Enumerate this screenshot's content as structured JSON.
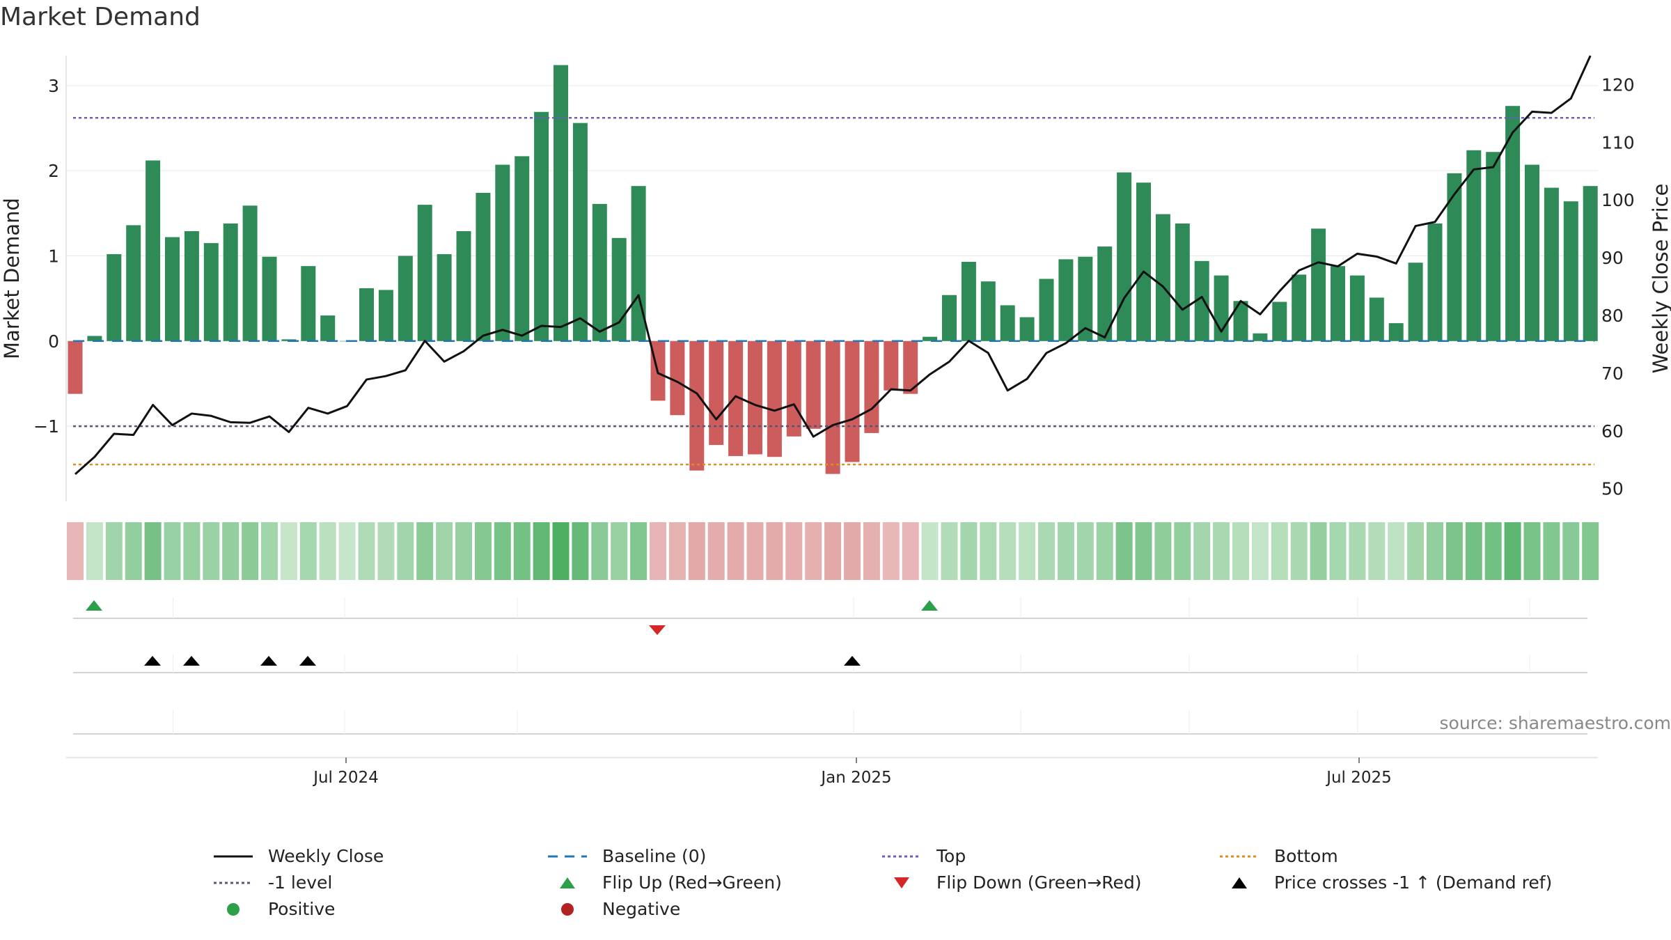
{
  "title": "Market Demand",
  "source": "source: sharemaestro.com",
  "colors": {
    "positive": "#2e8b57",
    "negative": "#cd5c5c",
    "price": "#111111",
    "baseline": "#1f77b4",
    "top": "#6a5acd",
    "bottom": "#e08c1a",
    "minus1": "#555577",
    "flip_up": "#2ca048",
    "flip_down": "#d62728",
    "cross": "#000000",
    "grid": "#e9e9e9"
  },
  "legend": [
    {
      "label": "Weekly Close",
      "style": "solid-line"
    },
    {
      "label": "Baseline (0)",
      "style": "dashed-line"
    },
    {
      "label": "Top",
      "style": "dotted-line-top"
    },
    {
      "label": "Bottom",
      "style": "dotted-line-bottom"
    },
    {
      "label": "-1 level",
      "style": "dotted-line-minus1"
    },
    {
      "label": "Flip Up (Red→Green)",
      "style": "triangle-up-green"
    },
    {
      "label": "Flip Down (Green→Red)",
      "style": "triangle-down-red"
    },
    {
      "label": "Price crosses -1 ↑ (Demand ref)",
      "style": "triangle-up-black"
    },
    {
      "label": "Positive",
      "style": "circle-green"
    },
    {
      "label": "Negative",
      "style": "circle-red"
    }
  ],
  "chart_data": {
    "type": "bar",
    "ylabel": "Market Demand",
    "y2label": "Weekly Close Price",
    "ylim": [
      -1.8,
      3.35
    ],
    "y2lim": [
      49,
      125
    ],
    "yticks": [
      -1,
      0,
      1,
      2,
      3
    ],
    "ytick_labels": [
      "−1",
      "0",
      "1",
      "2",
      "3"
    ],
    "y2ticks": [
      50,
      60,
      70,
      80,
      90,
      100,
      110,
      120
    ],
    "xticks": [
      {
        "index": 14.5,
        "label": "Jul 2024"
      },
      {
        "index": 41,
        "label": "Jan 2025"
      },
      {
        "index": 67,
        "label": "Jul 2025"
      }
    ],
    "levels": {
      "baseline": 0,
      "top": 2.62,
      "bottom": -1.45,
      "minus1": -1
    },
    "demand": [
      -0.62,
      0.06,
      1.02,
      1.36,
      2.12,
      1.22,
      1.29,
      1.15,
      1.38,
      1.59,
      0.99,
      0.02,
      0.88,
      0.3,
      0.0,
      0.62,
      0.6,
      1.0,
      1.6,
      1.02,
      1.29,
      1.74,
      2.07,
      2.17,
      2.69,
      3.24,
      2.56,
      1.61,
      1.21,
      1.82,
      -0.7,
      -0.87,
      -1.52,
      -1.22,
      -1.35,
      -1.33,
      -1.36,
      -1.12,
      -1.03,
      -1.56,
      -1.42,
      -1.08,
      -0.58,
      -0.62,
      0.05,
      0.54,
      0.93,
      0.7,
      0.42,
      0.28,
      0.73,
      0.96,
      0.99,
      1.11,
      1.98,
      1.86,
      1.49,
      1.38,
      0.94,
      0.77,
      0.47,
      0.09,
      0.46,
      0.78,
      1.32,
      0.88,
      0.77,
      0.51,
      0.21,
      0.92,
      1.38,
      1.97,
      2.24,
      2.22,
      2.76,
      2.07,
      1.8,
      1.64,
      1.82
    ],
    "close": [
      52.5,
      55.5,
      59.5,
      59.3,
      64.5,
      61.0,
      63.0,
      62.6,
      61.5,
      61.4,
      62.5,
      59.8,
      64.0,
      63.0,
      64.3,
      68.9,
      69.5,
      70.5,
      75.6,
      72.0,
      73.8,
      76.5,
      77.5,
      76.5,
      78.2,
      78.0,
      79.5,
      77.2,
      78.8,
      83.5,
      70.0,
      68.5,
      66.5,
      62.0,
      66.0,
      64.5,
      63.5,
      64.6,
      59.0,
      61.0,
      62.0,
      63.8,
      67.2,
      67.0,
      69.8,
      72.0,
      75.6,
      73.5,
      67.0,
      69.0,
      73.5,
      75.2,
      77.8,
      76.2,
      83.0,
      87.6,
      85.0,
      81.0,
      83.2,
      77.2,
      82.5,
      80.2,
      84.2,
      87.8,
      89.2,
      88.5,
      90.7,
      90.2,
      89.0,
      95.5,
      96.2,
      101.0,
      105.3,
      105.7,
      111.7,
      115.3,
      115.1,
      117.6,
      125.0
    ],
    "flip_up": [
      1,
      44
    ],
    "flip_down": [
      30
    ],
    "price_crosses": [
      4,
      6,
      10,
      12,
      40
    ]
  }
}
